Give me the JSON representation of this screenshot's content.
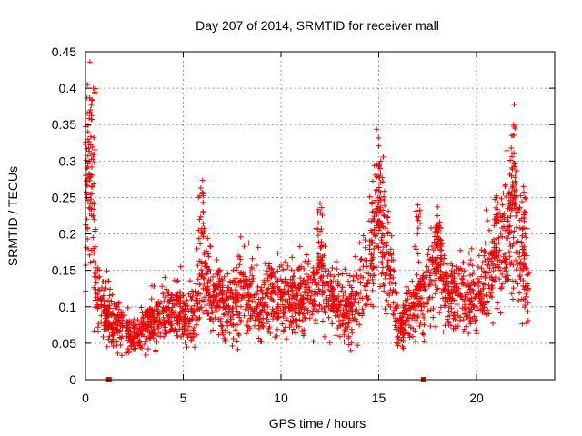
{
  "chart_data": {
    "type": "scatter",
    "title": "Day 207 of 2014, SRMTID for receiver mall",
    "xlabel": "GPS time / hours",
    "ylabel": "SRMTID / TECUs",
    "xlim": [
      0,
      24
    ],
    "ylim": [
      0,
      0.45
    ],
    "xticks": [
      0,
      5,
      10,
      15,
      20
    ],
    "yticks": [
      0,
      0.05,
      0.1,
      0.15,
      0.2,
      0.25,
      0.3,
      0.35,
      0.4,
      0.45
    ],
    "xtick_labels": [
      "0",
      "5",
      "10",
      "15",
      "20"
    ],
    "ytick_labels": [
      "0",
      "0.05",
      "0.1",
      "0.15",
      "0.2",
      "0.25",
      "0.3",
      "0.35",
      "0.4",
      "0.45"
    ],
    "grid": true,
    "legend": false,
    "marker": "+",
    "color": "#ee0000",
    "zero_markers_x": [
      1.2,
      17.3
    ],
    "series": [
      {
        "x_range": [
          0.0,
          22.7
        ],
        "trend": [
          [
            0.0,
            0.14
          ],
          [
            0.15,
            0.33
          ],
          [
            0.3,
            0.3
          ],
          [
            0.45,
            0.17
          ],
          [
            0.6,
            0.11
          ],
          [
            1.0,
            0.09
          ],
          [
            1.5,
            0.08
          ],
          [
            2.0,
            0.065
          ],
          [
            2.5,
            0.06
          ],
          [
            3.0,
            0.07
          ],
          [
            3.5,
            0.08
          ],
          [
            4.0,
            0.09
          ],
          [
            4.5,
            0.095
          ],
          [
            5.0,
            0.085
          ],
          [
            5.5,
            0.08
          ],
          [
            6.0,
            0.15
          ],
          [
            6.5,
            0.12
          ],
          [
            7.0,
            0.11
          ],
          [
            7.5,
            0.1
          ],
          [
            8.0,
            0.12
          ],
          [
            8.5,
            0.11
          ],
          [
            9.0,
            0.1
          ],
          [
            9.5,
            0.12
          ],
          [
            10.0,
            0.11
          ],
          [
            10.5,
            0.12
          ],
          [
            11.0,
            0.11
          ],
          [
            11.5,
            0.11
          ],
          [
            12.0,
            0.15
          ],
          [
            12.5,
            0.1
          ],
          [
            13.0,
            0.1
          ],
          [
            13.5,
            0.09
          ],
          [
            14.0,
            0.12
          ],
          [
            14.5,
            0.16
          ],
          [
            15.0,
            0.22
          ],
          [
            15.5,
            0.17
          ],
          [
            16.0,
            0.07
          ],
          [
            16.5,
            0.09
          ],
          [
            17.0,
            0.1
          ],
          [
            17.5,
            0.13
          ],
          [
            18.0,
            0.17
          ],
          [
            18.5,
            0.11
          ],
          [
            19.0,
            0.12
          ],
          [
            19.5,
            0.11
          ],
          [
            20.0,
            0.12
          ],
          [
            20.5,
            0.13
          ],
          [
            21.0,
            0.17
          ],
          [
            21.5,
            0.19
          ],
          [
            22.0,
            0.21
          ],
          [
            22.3,
            0.16
          ],
          [
            22.7,
            0.13
          ]
        ],
        "peaks": [
          [
            0.1,
            0.405
          ],
          [
            0.4,
            0.4
          ],
          [
            0.25,
            0.37
          ],
          [
            5.9,
            0.263
          ],
          [
            12.0,
            0.242
          ],
          [
            14.9,
            0.295
          ],
          [
            15.1,
            0.3
          ],
          [
            17.0,
            0.24
          ],
          [
            18.0,
            0.225
          ],
          [
            21.0,
            0.25
          ],
          [
            21.9,
            0.35
          ],
          [
            21.8,
            0.335
          ],
          [
            22.4,
            0.265
          ]
        ]
      }
    ]
  }
}
